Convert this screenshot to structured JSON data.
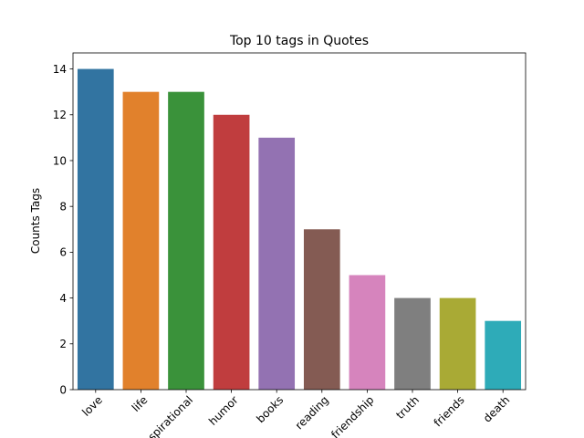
{
  "chart_data": {
    "type": "bar",
    "title": "Top 10 tags in Quotes",
    "xlabel": "",
    "ylabel": "Counts Tags",
    "categories": [
      "love",
      "life",
      "inspirational",
      "humor",
      "books",
      "reading",
      "friendship",
      "truth",
      "friends",
      "death"
    ],
    "values": [
      14,
      13,
      13,
      12,
      11,
      7,
      5,
      4,
      4,
      3
    ],
    "colors": [
      "#3274a1",
      "#e1812c",
      "#3a923a",
      "#c03d3e",
      "#9372b2",
      "#845b53",
      "#d684bd",
      "#7f7f7f",
      "#a9aa35",
      "#2eabb8"
    ],
    "yticks": [
      0,
      2,
      4,
      6,
      8,
      10,
      12,
      14
    ],
    "ylim": [
      0,
      14.7
    ],
    "grid": false,
    "legend": false
  }
}
